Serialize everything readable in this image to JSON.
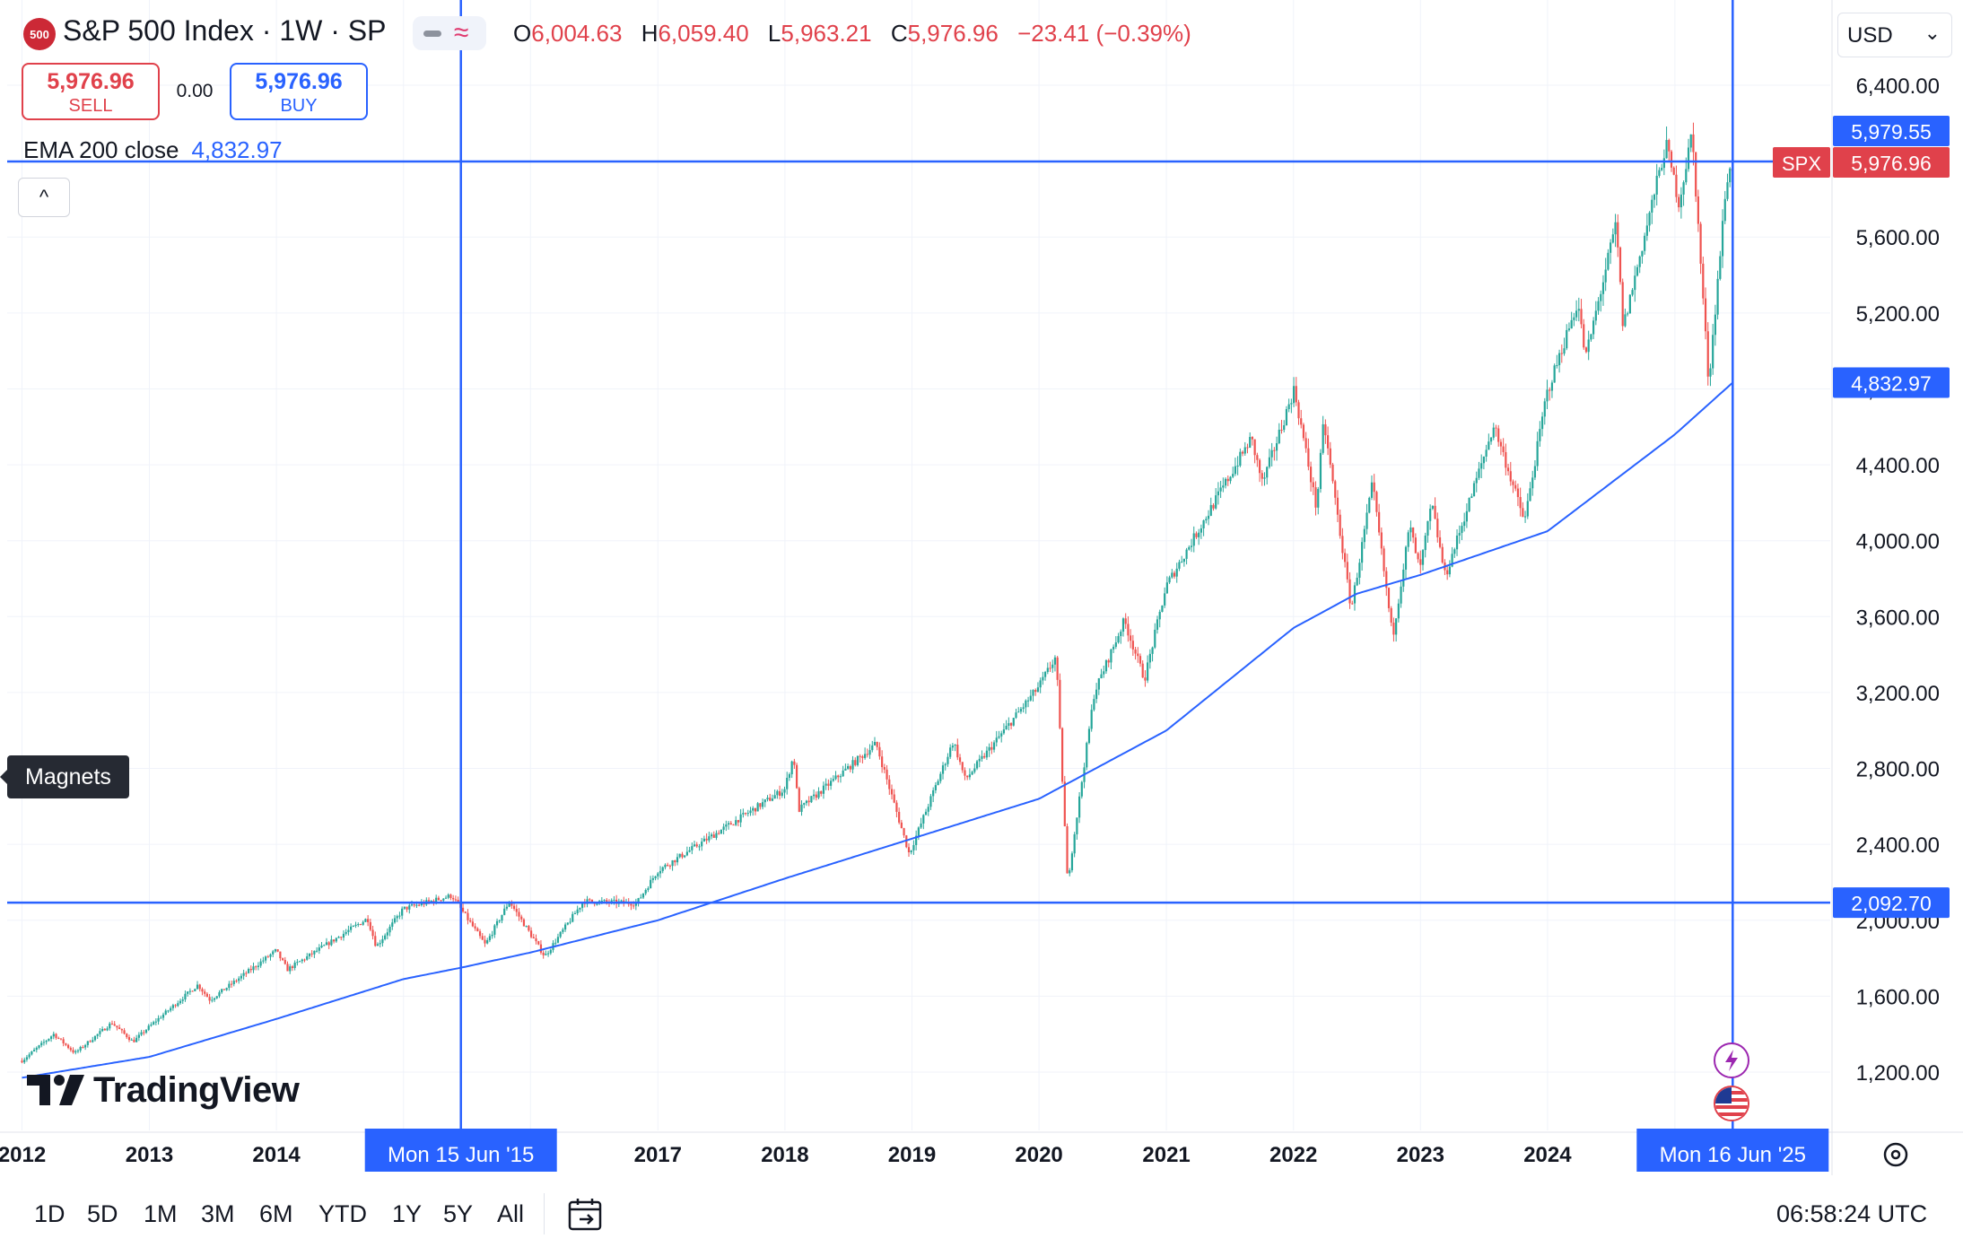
{
  "header": {
    "symbol_badge": "500",
    "title": "S&P 500 Index · 1W · SP",
    "ohlc": {
      "o_label": "O",
      "o_value": "6,004.63",
      "h_label": "H",
      "h_value": "6,059.40",
      "l_label": "L",
      "l_value": "5,963.21",
      "c_label": "C",
      "c_value": "5,976.96",
      "change": "−23.41 (−0.39%)"
    },
    "sell": {
      "price": "5,976.96",
      "label": "SELL"
    },
    "spread": "0.00",
    "buy": {
      "price": "5,976.96",
      "label": "BUY"
    },
    "indicator": {
      "name": "EMA 200 close",
      "value": "4,832.97"
    },
    "collapse_glyph": "^",
    "currency": "USD",
    "chevron": "⌄"
  },
  "tooltip": {
    "text": "Magnets"
  },
  "branding": {
    "name": "TradingView"
  },
  "price_axis": {
    "ticks": [
      "6,400.00",
      "6,000.00",
      "5,600.00",
      "5,200.00",
      "4,800.00",
      "4,400.00",
      "4,000.00",
      "3,600.00",
      "3,200.00",
      "2,800.00",
      "2,400.00",
      "2,000.00",
      "1,600.00",
      "1,200.00"
    ],
    "tick_values": [
      6400,
      6000,
      5600,
      5200,
      4800,
      4400,
      4000,
      3600,
      3200,
      2800,
      2400,
      2000,
      1600,
      1200
    ],
    "labels": [
      {
        "text": "5,979.55",
        "value": 5979.55,
        "color": "#2962ff"
      },
      {
        "text": "5,976.96",
        "value": 5976.96,
        "color": "#e0414b",
        "prefix": "SPX"
      },
      {
        "text": "4,832.97",
        "value": 4832.97,
        "color": "#2962ff"
      },
      {
        "text": "2,092.70",
        "value": 2092.7,
        "color": "#2962ff"
      }
    ]
  },
  "time_axis": {
    "labels": [
      "2012",
      "2013",
      "2014",
      "2015",
      "2016",
      "2017",
      "2018",
      "2019",
      "2020",
      "2021",
      "2022",
      "2023",
      "2024",
      "2025"
    ],
    "years": [
      2012,
      2013,
      2014,
      2015,
      2016,
      2017,
      2018,
      2019,
      2020,
      2021,
      2022,
      2023,
      2024,
      2025
    ],
    "crosshair_labels": [
      {
        "text": "Mon 15 Jun '15",
        "date": "2015-06-15"
      },
      {
        "text": "Mon 16 Jun '25",
        "date": "2025-06-16"
      }
    ]
  },
  "crosshairs": {
    "horizontal_values": [
      5979.55,
      2092.7
    ],
    "vertical_dates": [
      "2015-06-15",
      "2025-06-16"
    ]
  },
  "timeframes": [
    "1D",
    "5D",
    "1M",
    "3M",
    "6M",
    "YTD",
    "1Y",
    "5Y",
    "All"
  ],
  "clock": "06:58:24 UTC",
  "colors": {
    "up": "#26a69a",
    "down": "#ef5350",
    "ema": "#2962ff",
    "crosshair": "#2962ff",
    "grid": "#f0f3fa"
  },
  "chart_data": {
    "type": "candlestick",
    "interval": "1W",
    "title": "S&P 500 Index · 1W · SP",
    "ylim": [
      1000,
      6500
    ],
    "price_path": [
      [
        "2012-01-01",
        1260
      ],
      [
        "2012-04-01",
        1400
      ],
      [
        "2012-06-01",
        1300
      ],
      [
        "2012-09-15",
        1460
      ],
      [
        "2012-11-15",
        1360
      ],
      [
        "2013-01-01",
        1440
      ],
      [
        "2013-05-20",
        1660
      ],
      [
        "2013-06-24",
        1580
      ],
      [
        "2013-12-31",
        1840
      ],
      [
        "2014-02-01",
        1740
      ],
      [
        "2014-09-20",
        2010
      ],
      [
        "2014-10-15",
        1860
      ],
      [
        "2014-12-31",
        2060
      ],
      [
        "2015-05-20",
        2130
      ],
      [
        "2015-08-24",
        1870
      ],
      [
        "2015-11-01",
        2100
      ],
      [
        "2016-02-11",
        1810
      ],
      [
        "2016-06-01",
        2100
      ],
      [
        "2016-11-01",
        2090
      ],
      [
        "2016-12-31",
        2260
      ],
      [
        "2017-12-31",
        2690
      ],
      [
        "2018-01-26",
        2870
      ],
      [
        "2018-02-09",
        2580
      ],
      [
        "2018-09-20",
        2930
      ],
      [
        "2018-12-24",
        2350
      ],
      [
        "2019-04-30",
        2945
      ],
      [
        "2019-06-03",
        2740
      ],
      [
        "2019-12-31",
        3230
      ],
      [
        "2020-02-19",
        3390
      ],
      [
        "2020-03-23",
        2200
      ],
      [
        "2020-06-08",
        3200
      ],
      [
        "2020-09-02",
        3580
      ],
      [
        "2020-10-30",
        3270
      ],
      [
        "2020-12-31",
        3760
      ],
      [
        "2021-09-02",
        4540
      ],
      [
        "2021-10-04",
        4300
      ],
      [
        "2022-01-03",
        4800
      ],
      [
        "2022-03-08",
        4170
      ],
      [
        "2022-03-29",
        4630
      ],
      [
        "2022-06-16",
        3640
      ],
      [
        "2022-08-16",
        4300
      ],
      [
        "2022-10-13",
        3490
      ],
      [
        "2022-12-01",
        4080
      ],
      [
        "2022-12-30",
        3840
      ],
      [
        "2023-02-02",
        4195
      ],
      [
        "2023-03-13",
        3810
      ],
      [
        "2023-07-31",
        4610
      ],
      [
        "2023-10-27",
        4100
      ],
      [
        "2023-12-29",
        4770
      ],
      [
        "2024-03-28",
        5260
      ],
      [
        "2024-04-19",
        4960
      ],
      [
        "2024-07-16",
        5670
      ],
      [
        "2024-08-05",
        5120
      ],
      [
        "2024-12-06",
        6090
      ],
      [
        "2025-01-13",
        5780
      ],
      [
        "2025-02-19",
        6150
      ],
      [
        "2025-04-08",
        4830
      ],
      [
        "2025-04-21",
        5100
      ],
      [
        "2025-05-30",
        5910
      ],
      [
        "2025-06-16",
        5976.96
      ]
    ],
    "ema200_path": [
      [
        "2012-01-01",
        1170
      ],
      [
        "2013-01-01",
        1280
      ],
      [
        "2014-01-01",
        1480
      ],
      [
        "2015-01-01",
        1690
      ],
      [
        "2015-06-15",
        1750
      ],
      [
        "2016-01-01",
        1830
      ],
      [
        "2017-01-01",
        2000
      ],
      [
        "2018-01-01",
        2220
      ],
      [
        "2019-01-01",
        2430
      ],
      [
        "2020-01-01",
        2640
      ],
      [
        "2021-01-01",
        3000
      ],
      [
        "2022-01-01",
        3540
      ],
      [
        "2022-07-01",
        3720
      ],
      [
        "2023-01-01",
        3820
      ],
      [
        "2024-01-01",
        4050
      ],
      [
        "2025-01-01",
        4560
      ],
      [
        "2025-06-16",
        4832.97
      ]
    ]
  }
}
